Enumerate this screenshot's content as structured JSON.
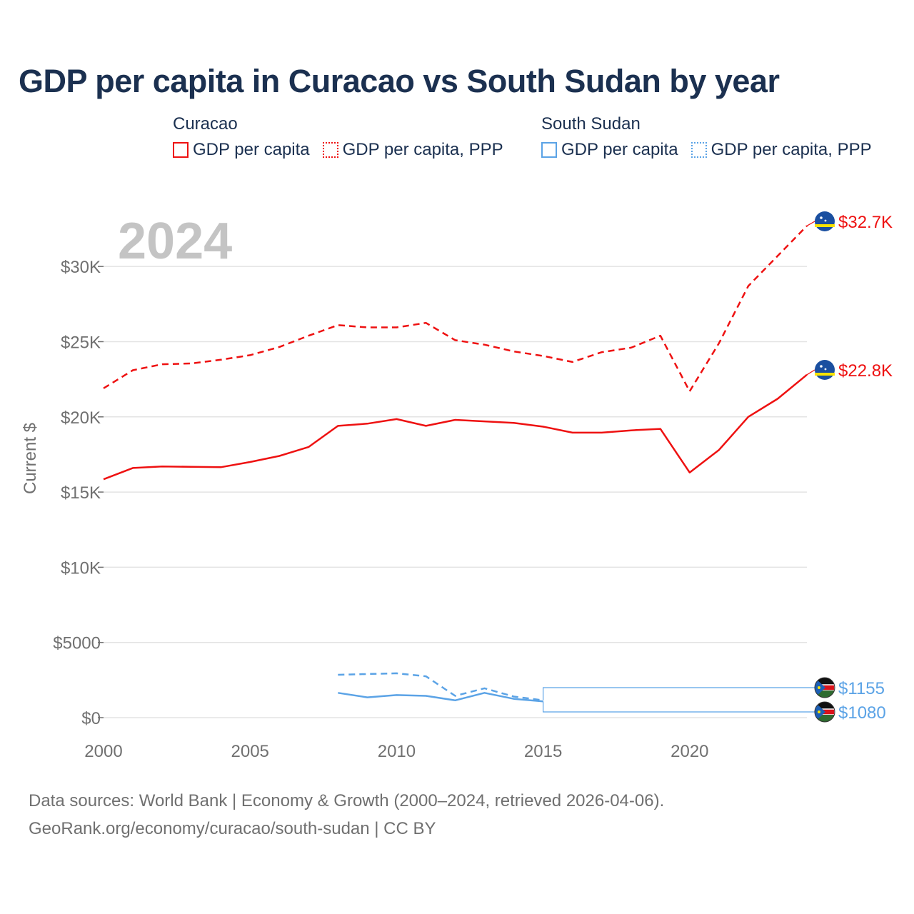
{
  "title": "GDP per capita in Curacao vs South Sudan by year",
  "legend": {
    "groups": [
      {
        "country": "Curacao",
        "color": "#ee1111",
        "items": [
          "GDP per capita",
          "GDP per capita, PPP"
        ]
      },
      {
        "country": "South Sudan",
        "color": "#5ba3e6",
        "items": [
          "GDP per capita",
          "GDP per capita, PPP"
        ]
      }
    ]
  },
  "year_watermark": "2024",
  "footer": {
    "line1": "Data sources: World Bank | Economy & Growth (2000–2024, retrieved 2026-04-06).",
    "line2": "GeoRank.org/economy/curacao/south-sudan | CC BY"
  },
  "chart_data": {
    "type": "line",
    "title": "GDP per capita in Curacao vs South Sudan by year",
    "xlabel": "",
    "ylabel": "Current $",
    "xlim": [
      2000,
      2024
    ],
    "ylim": [
      0,
      33000
    ],
    "x_ticks": [
      2000,
      2005,
      2010,
      2015,
      2020
    ],
    "x_tick_labels": [
      "2000",
      "2005",
      "2010",
      "2015",
      "2020"
    ],
    "y_ticks": [
      0,
      5000,
      10000,
      15000,
      20000,
      25000,
      30000
    ],
    "y_tick_labels": [
      "$0",
      "$5000",
      "$10K",
      "$15K",
      "$20K",
      "$25K",
      "$30K"
    ],
    "grid": true,
    "series": [
      {
        "name": "Curacao GDP per capita, PPP",
        "country": "Curacao",
        "color": "#ee1111",
        "dashed": true,
        "x": [
          2000,
          2001,
          2002,
          2003,
          2004,
          2005,
          2006,
          2007,
          2008,
          2009,
          2010,
          2011,
          2012,
          2013,
          2014,
          2015,
          2016,
          2017,
          2018,
          2019,
          2020,
          2021,
          2022,
          2023,
          2024
        ],
        "values": [
          21900,
          23100,
          23500,
          23550,
          23800,
          24100,
          24650,
          25400,
          26100,
          25950,
          25950,
          26250,
          25100,
          24800,
          24350,
          24050,
          23650,
          24300,
          24600,
          25400,
          21700,
          24900,
          28700,
          30700,
          32700
        ],
        "end_label": "$32.7K"
      },
      {
        "name": "Curacao GDP per capita",
        "country": "Curacao",
        "color": "#ee1111",
        "dashed": false,
        "x": [
          2000,
          2001,
          2002,
          2003,
          2004,
          2005,
          2006,
          2007,
          2008,
          2009,
          2010,
          2011,
          2012,
          2013,
          2014,
          2015,
          2016,
          2017,
          2018,
          2019,
          2020,
          2021,
          2022,
          2023,
          2024
        ],
        "values": [
          15850,
          16600,
          16700,
          16680,
          16650,
          17000,
          17400,
          18000,
          19400,
          19550,
          19850,
          19400,
          19800,
          19700,
          19600,
          19350,
          18950,
          18950,
          19100,
          19200,
          16300,
          17800,
          20000,
          21200,
          22800
        ],
        "end_label": "$22.8K"
      },
      {
        "name": "South Sudan GDP per capita, PPP",
        "country": "South Sudan",
        "color": "#5ba3e6",
        "dashed": true,
        "x": [
          2008,
          2009,
          2010,
          2011,
          2012,
          2013,
          2014,
          2015
        ],
        "values": [
          2850,
          2900,
          2950,
          2750,
          1450,
          1950,
          1400,
          1155
        ],
        "end_label": "$1155"
      },
      {
        "name": "South Sudan GDP per capita",
        "country": "South Sudan",
        "color": "#5ba3e6",
        "dashed": false,
        "x": [
          2008,
          2009,
          2010,
          2011,
          2012,
          2013,
          2014,
          2015
        ],
        "values": [
          1650,
          1350,
          1500,
          1450,
          1150,
          1650,
          1250,
          1080
        ],
        "end_label": "$1080"
      }
    ]
  },
  "flags": {
    "curacao": "curacao-flag-icon",
    "south_sudan": "south-sudan-flag-icon"
  }
}
